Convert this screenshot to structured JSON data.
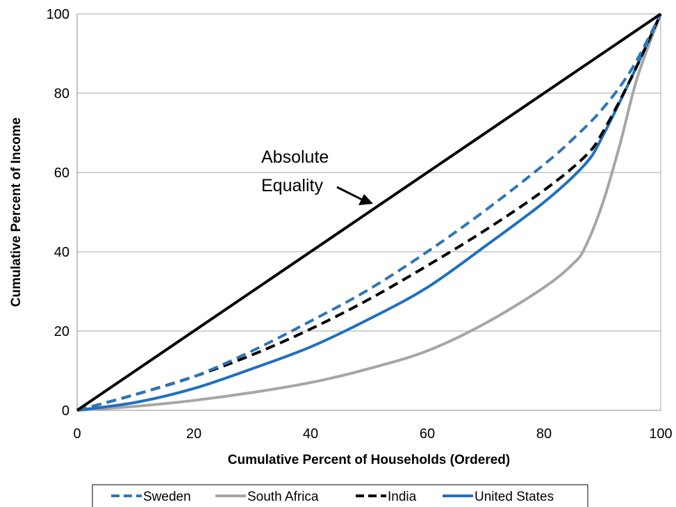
{
  "chart_data": {
    "type": "line",
    "title": "",
    "xlabel": "Cumulative Percent of Households (Ordered)",
    "ylabel": "Cumulative Percent of Income",
    "xlim": [
      0,
      100
    ],
    "ylim": [
      0,
      100
    ],
    "xticks": [
      "0",
      "20",
      "40",
      "60",
      "80",
      "100"
    ],
    "yticks": [
      "0",
      "20",
      "40",
      "60",
      "80",
      "100"
    ],
    "grid": "horizontal",
    "legend_position": "bottom",
    "annotation": {
      "lines": [
        "Absolute",
        "Equality"
      ]
    },
    "equality_line": {
      "x": [
        0,
        100
      ],
      "y": [
        0,
        100
      ],
      "color": "#000000"
    },
    "series": [
      {
        "name": "Sweden",
        "color": "#2E75B6",
        "dash": true,
        "x": [
          0,
          10,
          20,
          30,
          40,
          50,
          60,
          70,
          80,
          85,
          90,
          95,
          100
        ],
        "y": [
          0,
          4,
          8.5,
          15,
          22.5,
          30.5,
          40,
          50.5,
          62,
          68.5,
          76,
          86,
          100
        ]
      },
      {
        "name": "South Africa",
        "color": "#A6A6A6",
        "dash": false,
        "x": [
          0,
          10,
          20,
          30,
          40,
          50,
          60,
          70,
          80,
          85,
          87,
          90,
          93,
          96,
          100
        ],
        "y": [
          0,
          1,
          2.5,
          4.5,
          7,
          10.5,
          15,
          22,
          31,
          37,
          41,
          52,
          67,
          84,
          100
        ]
      },
      {
        "name": "India",
        "color": "#000000",
        "dash": true,
        "x": [
          0,
          10,
          20,
          30,
          40,
          50,
          60,
          70,
          80,
          87,
          90,
          95,
          100
        ],
        "y": [
          0,
          4,
          8.5,
          14,
          20.5,
          28,
          36.5,
          45.5,
          55.5,
          64,
          70,
          84,
          100
        ]
      },
      {
        "name": "United States",
        "color": "#1F6FC1",
        "dash": false,
        "x": [
          0,
          10,
          20,
          30,
          40,
          50,
          60,
          70,
          80,
          87,
          90,
          95,
          100
        ],
        "y": [
          0,
          2,
          5.5,
          10.5,
          16,
          23,
          31,
          41.5,
          52.5,
          62,
          69,
          84,
          100
        ]
      }
    ]
  }
}
